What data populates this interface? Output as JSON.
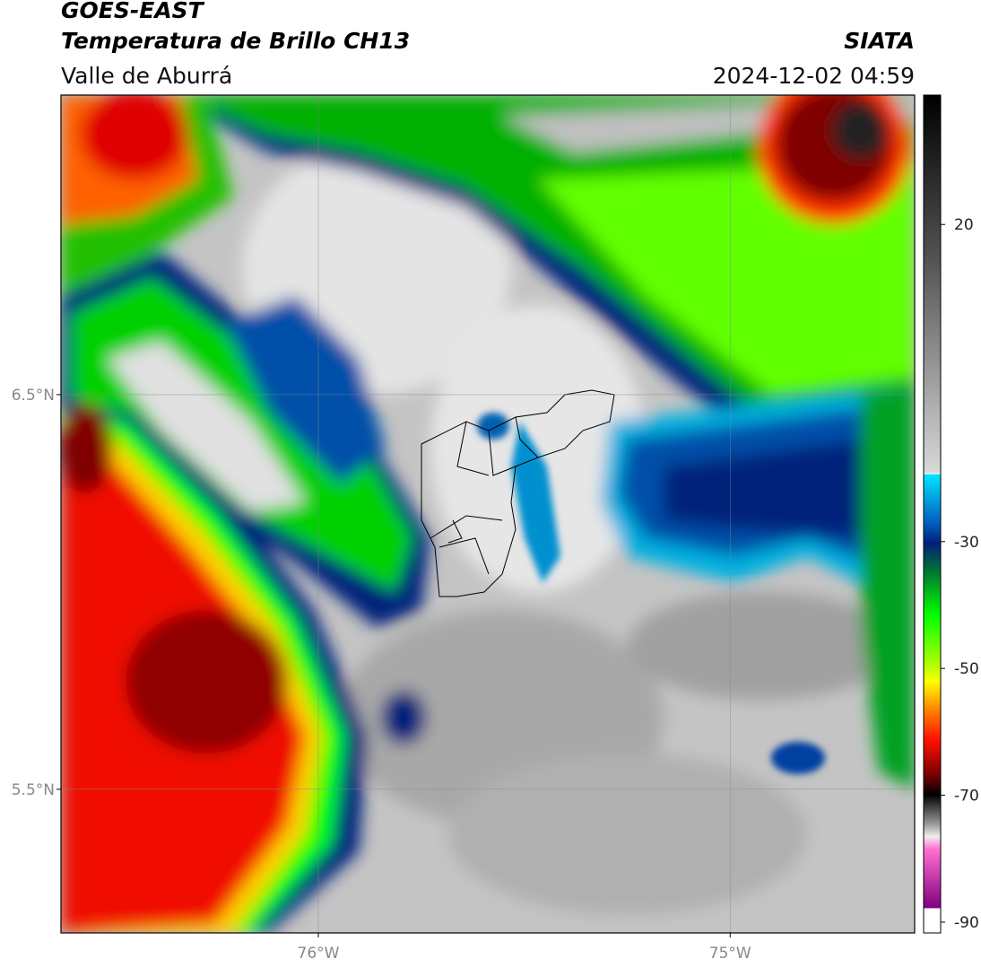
{
  "header": {
    "title": "GOES-EAST",
    "subtitle": "Temperatura de Brillo CH13",
    "region": "Valle de Aburrá",
    "agency": "SIATA",
    "timestamp": "2024-12-02 04:59"
  },
  "map": {
    "lat_lim": [
      7.259,
      5.136
    ],
    "lon_lim": [
      -76.625,
      -74.552
    ],
    "lat_labels": [
      {
        "value": 6.5,
        "label": "6.5°N"
      },
      {
        "value": 5.5,
        "label": "5.5°N"
      }
    ],
    "lon_labels": [
      {
        "value": -76,
        "label": "76°W"
      },
      {
        "value": -75,
        "label": "75°W"
      }
    ],
    "colorbar": {
      "lim": [
        40.4,
        -91.7
      ],
      "ticks": [
        20,
        -30,
        -50,
        -70,
        -90
      ]
    }
  }
}
